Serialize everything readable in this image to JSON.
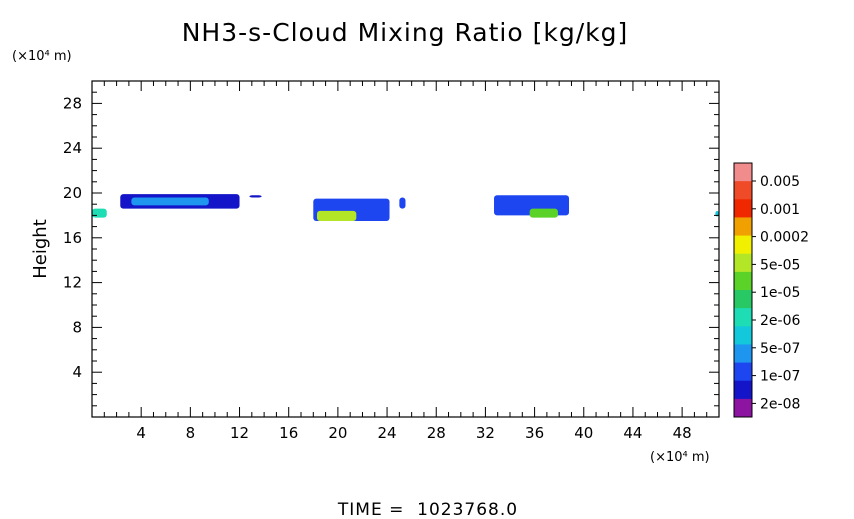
{
  "chart_data": {
    "type": "heatmap",
    "title": "NH3-s-Cloud Mixing Ratio [kg/kg]",
    "ylabel": "Height",
    "y_unit": "(×10⁴ m)",
    "x_unit": "(×10⁴ m)",
    "xlim": [
      0,
      51
    ],
    "ylim": [
      0,
      30
    ],
    "x_ticks": [
      4,
      8,
      12,
      16,
      20,
      24,
      28,
      32,
      36,
      40,
      44,
      48
    ],
    "y_ticks": [
      4,
      8,
      12,
      16,
      20,
      24,
      28
    ],
    "footer": "TIME =  1023768.0",
    "colorbar": {
      "labels": [
        "0.005",
        "0.001",
        "0.0002",
        "5e-05",
        "1e-05",
        "2e-06",
        "5e-07",
        "1e-07",
        "2e-08"
      ],
      "colors": [
        "#f08c8c",
        "#f04b28",
        "#f02800",
        "#f0a000",
        "#f0f000",
        "#b4e628",
        "#5ad228",
        "#28c864",
        "#1edcb4",
        "#14c8dc",
        "#1e96f0",
        "#1e46f0",
        "#1414c8",
        "#8c14a0"
      ]
    },
    "regions": [
      {
        "x": [
          0.0,
          1.2
        ],
        "y": [
          17.8,
          18.6
        ],
        "level": "1e-06"
      },
      {
        "x": [
          2.3,
          12.0
        ],
        "y": [
          18.6,
          19.9
        ],
        "level": "2e-08"
      },
      {
        "x": [
          3.2,
          9.5
        ],
        "y": [
          18.9,
          19.6
        ],
        "level": "5e-07"
      },
      {
        "x": [
          12.8,
          13.8
        ],
        "y": [
          19.6,
          19.8
        ],
        "level": "2e-08"
      },
      {
        "x": [
          18.0,
          24.2
        ],
        "y": [
          17.5,
          19.5
        ],
        "level": "1e-07"
      },
      {
        "x": [
          18.3,
          21.5
        ],
        "y": [
          17.5,
          18.4
        ],
        "level": "5e-05"
      },
      {
        "x": [
          25.0,
          25.5
        ],
        "y": [
          18.6,
          19.6
        ],
        "level": "1e-07"
      },
      {
        "x": [
          32.7,
          38.8
        ],
        "y": [
          18.0,
          19.8
        ],
        "level": "1e-07"
      },
      {
        "x": [
          35.6,
          37.9
        ],
        "y": [
          17.8,
          18.6
        ],
        "level": "1e-05"
      },
      {
        "x": [
          50.7,
          51.0
        ],
        "y": [
          17.9,
          18.4
        ],
        "level": "2e-06"
      }
    ]
  }
}
